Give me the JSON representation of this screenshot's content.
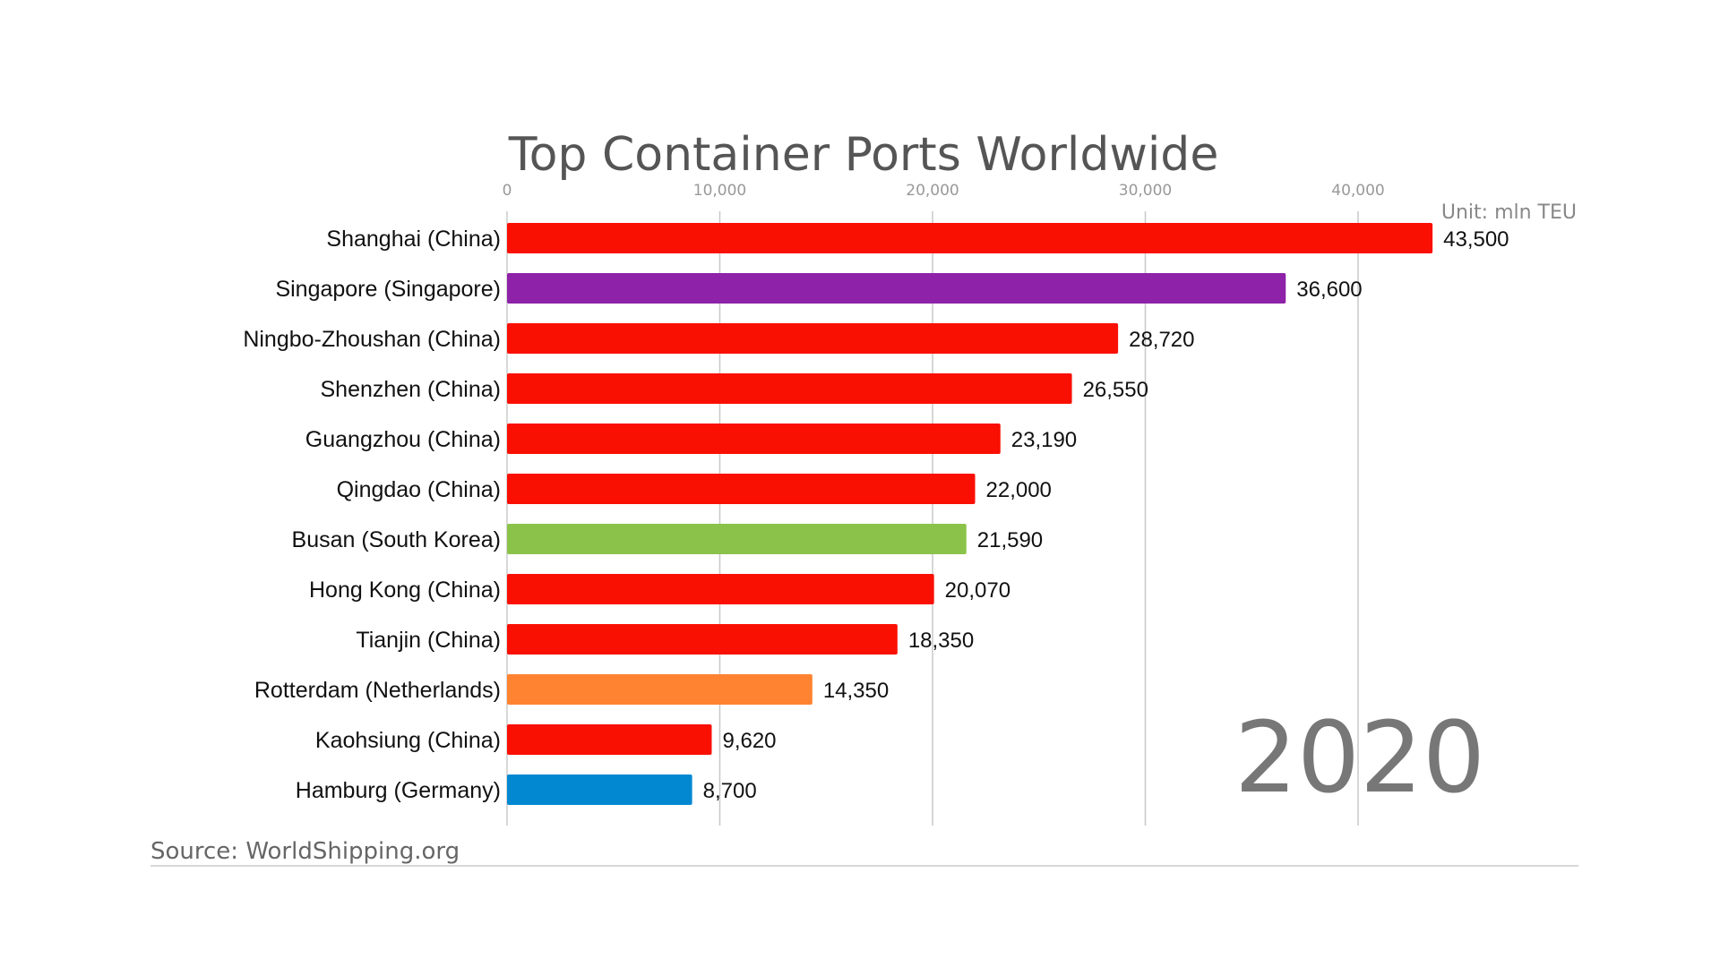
{
  "chart_data": {
    "type": "bar",
    "orientation": "horizontal",
    "title": "Top Container Ports Worldwide",
    "unit": "Unit: mln TEU",
    "year": "2020",
    "source": "Source: WorldShipping.org",
    "xlim": [
      0,
      45000
    ],
    "xticks": [
      0,
      10000,
      20000,
      30000,
      40000
    ],
    "xtick_labels": [
      "0",
      "10,000",
      "20,000",
      "30,000",
      "40,000"
    ],
    "grid": true,
    "categories": [
      "Shanghai (China)",
      "Singapore (Singapore)",
      "Ningbo-Zhoushan (China)",
      "Shenzhen (China)",
      "Guangzhou (China)",
      "Qingdao (China)",
      "Busan (South Korea)",
      "Hong Kong (China)",
      "Tianjin (China)",
      "Rotterdam (Netherlands)",
      "Kaohsiung (China)",
      "Hamburg (Germany)"
    ],
    "values": [
      43500,
      36600,
      28720,
      26550,
      23190,
      22000,
      21590,
      20070,
      18350,
      14350,
      9620,
      8700
    ],
    "value_labels": [
      "43,500",
      "36,600",
      "28,720",
      "26,550",
      "23,190",
      "22,000",
      "21,590",
      "20,070",
      "18,350",
      "14,350",
      "9,620",
      "8,700"
    ],
    "colors": [
      "#fa0f03",
      "#8e22a8",
      "#fa0f03",
      "#fa0f03",
      "#fa0f03",
      "#fa0f03",
      "#8bc34a",
      "#fa0f03",
      "#fa0f03",
      "#ff8330",
      "#fa0f03",
      "#0288d1"
    ]
  }
}
